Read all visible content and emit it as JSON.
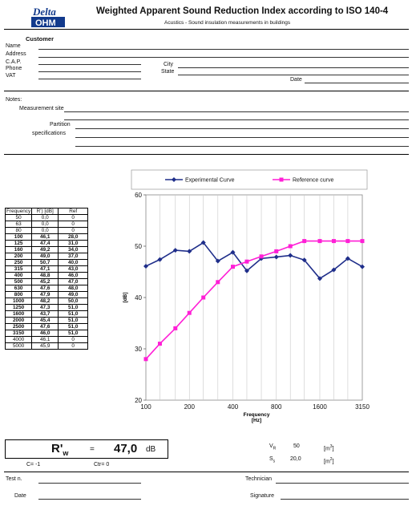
{
  "header": {
    "logo_top": "Delta",
    "logo_bottom": "OHM",
    "title": "Weighted Apparent Sound Reduction Index according to  ISO 140-4",
    "subtitle": "Acustics - Sound insulation measurements in buildings"
  },
  "customer": {
    "heading": "Customer",
    "name_label": "Name",
    "address_label": "Address",
    "cap_label": "C.A.P.",
    "phone_label": "Phone",
    "vat_label": "VAT",
    "city_label": "City",
    "state_label": "State",
    "date_label": "Date"
  },
  "notes": {
    "notes_label": "Notes:",
    "site_label": "Measurement site",
    "partition_label_1": "Partition",
    "partition_label_2": "specifications"
  },
  "table": {
    "headers": [
      "Frequency",
      "R') [dB]",
      "Ref"
    ],
    "rows": [
      {
        "f": "50",
        "r": "0,0",
        "ref": "0",
        "bold": false
      },
      {
        "f": "63",
        "r": "0,0",
        "ref": "0",
        "bold": false
      },
      {
        "f": "80",
        "r": "0,0",
        "ref": "0",
        "bold": false
      },
      {
        "f": "100",
        "r": "46,1",
        "ref": "28,0",
        "bold": true
      },
      {
        "f": "125",
        "r": "47,4",
        "ref": "31,0",
        "bold": true
      },
      {
        "f": "160",
        "r": "49,2",
        "ref": "34,0",
        "bold": true
      },
      {
        "f": "200",
        "r": "49,0",
        "ref": "37,0",
        "bold": true
      },
      {
        "f": "250",
        "r": "50,7",
        "ref": "40,0",
        "bold": true
      },
      {
        "f": "315",
        "r": "47,1",
        "ref": "43,0",
        "bold": true
      },
      {
        "f": "400",
        "r": "48,8",
        "ref": "46,0",
        "bold": true
      },
      {
        "f": "500",
        "r": "45,2",
        "ref": "47,0",
        "bold": true
      },
      {
        "f": "630",
        "r": "47,6",
        "ref": "48,0",
        "bold": true
      },
      {
        "f": "800",
        "r": "47,9",
        "ref": "49,0",
        "bold": true
      },
      {
        "f": "1000",
        "r": "48,2",
        "ref": "50,0",
        "bold": true
      },
      {
        "f": "1250",
        "r": "47,3",
        "ref": "51,0",
        "bold": true
      },
      {
        "f": "1600",
        "r": "43,7",
        "ref": "51,0",
        "bold": true
      },
      {
        "f": "2000",
        "r": "45,4",
        "ref": "51,0",
        "bold": true
      },
      {
        "f": "2500",
        "r": "47,6",
        "ref": "51,0",
        "bold": true
      },
      {
        "f": "3150",
        "r": "46,0",
        "ref": "51,0",
        "bold": true
      },
      {
        "f": "4000",
        "r": "46,1",
        "ref": "0",
        "bold": false
      },
      {
        "f": "5000",
        "r": "45,9",
        "ref": "0",
        "bold": false
      }
    ]
  },
  "chart_data": {
    "type": "line",
    "title": "",
    "xlabel": "Frequency",
    "xlabel_unit": "[Hz]",
    "ylabel": "[dB]",
    "x_scale": "log",
    "ylim": [
      20,
      60
    ],
    "yticks": [
      20,
      30,
      40,
      50,
      60
    ],
    "xticks": [
      100,
      200,
      400,
      800,
      1600,
      3150
    ],
    "grid": "vertical",
    "legend_placement": "top",
    "x": [
      100,
      125,
      160,
      200,
      250,
      315,
      400,
      500,
      630,
      800,
      1000,
      1250,
      1600,
      2000,
      2500,
      3150
    ],
    "series": [
      {
        "name": "Experimental Curve",
        "color": "#1f2e8a",
        "marker": "diamond",
        "values": [
          46.1,
          47.4,
          49.2,
          49.0,
          50.7,
          47.1,
          48.8,
          45.2,
          47.6,
          47.9,
          48.2,
          47.3,
          43.7,
          45.4,
          47.6,
          46.0
        ]
      },
      {
        "name": "Reference curve",
        "color": "#ff1fd6",
        "marker": "square",
        "values": [
          28,
          31,
          34,
          37,
          40,
          43,
          46,
          47,
          48,
          49,
          50,
          51,
          51,
          51,
          51,
          51
        ]
      }
    ]
  },
  "result": {
    "rw_symbol": "R'",
    "rw_subscript": "w",
    "equals": "=",
    "rw_value": "47,0",
    "rw_unit": "dB",
    "c_text": "C= -1",
    "ctr_text": "Ctr= 0"
  },
  "volumes": {
    "vr_label": "V",
    "vr_sub": "R",
    "vr_value": "50",
    "vr_unit": "[m",
    "vr_unit_exp": "3",
    "vr_unit_close": "]",
    "s_label": "S",
    "s_sub": "s",
    "s_value": "20,0",
    "s_unit": "[m",
    "s_unit_exp": "2",
    "s_unit_close": "]"
  },
  "footer": {
    "test_label": "Test n.",
    "technician_label": "Technician",
    "date_label": "Date",
    "signature_label": "Signature"
  }
}
